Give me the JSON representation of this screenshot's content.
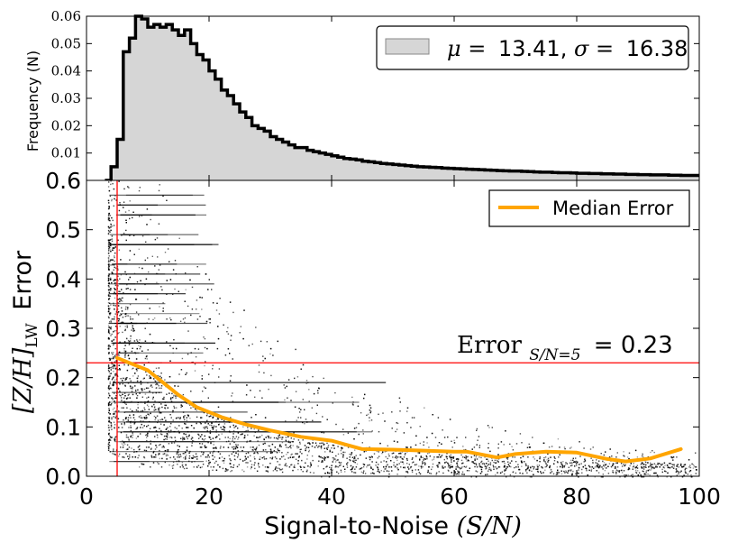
{
  "chart_data": [
    {
      "type": "histogram",
      "title": "",
      "ylabel": "Frequency (N)",
      "xlim": [
        0,
        100
      ],
      "ylim": [
        0,
        0.06
      ],
      "yticks": [
        "0.01",
        "0.02",
        "0.03",
        "0.04",
        "0.05",
        "0.06"
      ],
      "legend": {
        "mu_label": "μ =",
        "mu": "13.41",
        "sigma_label": "σ =",
        "sigma": "16.38",
        "placement": "top-right"
      },
      "bin_width": 1,
      "bins_start": 3,
      "values": [
        0.0,
        0.005,
        0.015,
        0.047,
        0.052,
        0.061,
        0.059,
        0.056,
        0.057,
        0.056,
        0.057,
        0.055,
        0.053,
        0.055,
        0.05,
        0.046,
        0.044,
        0.04,
        0.037,
        0.033,
        0.031,
        0.028,
        0.025,
        0.023,
        0.02,
        0.019,
        0.018,
        0.016,
        0.015,
        0.014,
        0.013,
        0.012,
        0.012,
        0.011,
        0.0105,
        0.01,
        0.0095,
        0.009,
        0.0085,
        0.008,
        0.0078,
        0.0075,
        0.007,
        0.0068,
        0.0065,
        0.0062,
        0.006,
        0.0058,
        0.0056,
        0.0054,
        0.0052,
        0.005,
        0.0049,
        0.0048,
        0.0047,
        0.0045,
        0.0044,
        0.0043,
        0.0042,
        0.0041,
        0.004,
        0.0039,
        0.0038,
        0.0037,
        0.0036,
        0.0035,
        0.0034,
        0.0034,
        0.0033,
        0.0032,
        0.0031,
        0.003,
        0.003,
        0.0029,
        0.0028,
        0.0028,
        0.0027,
        0.0026,
        0.0026,
        0.0025,
        0.0025,
        0.0024,
        0.0024,
        0.0023,
        0.0023,
        0.0022,
        0.0022,
        0.0021,
        0.0021,
        0.002,
        0.002,
        0.002,
        0.0019,
        0.0019,
        0.0018,
        0.0018,
        0.0018
      ],
      "fill_color": "#d6d6d6",
      "line_color": "#000000"
    },
    {
      "type": "scatter",
      "xlabel": "Signal-to-Noise",
      "xlabel_math": "(S/N)",
      "ylabel_math": "[Z/H]",
      "ylabel_sub": "LW",
      "ylabel_suffix": "Error",
      "xlim": [
        0,
        100
      ],
      "ylim": [
        0,
        0.6
      ],
      "xticks": [
        "0",
        "20",
        "40",
        "60",
        "80",
        "100"
      ],
      "yticks": [
        "0.0",
        "0.1",
        "0.2",
        "0.3",
        "0.4",
        "0.5",
        "0.6"
      ],
      "threshold_x": 5,
      "threshold_y": 0.23,
      "annotation": {
        "text_main": "Error",
        "text_sub": "S/N=5",
        "text_value": "= 0.23"
      },
      "legend": {
        "label": "Median Error",
        "placement": "top-right"
      },
      "median_series": {
        "name": "Median Error",
        "color": "#ffa500",
        "x": [
          5,
          7,
          10,
          12,
          15,
          18,
          22,
          26,
          30,
          35,
          40,
          45,
          50,
          55,
          60,
          62,
          67,
          70,
          75,
          80,
          85,
          88,
          92,
          97
        ],
        "y": [
          0.24,
          0.23,
          0.215,
          0.195,
          0.165,
          0.14,
          0.12,
          0.105,
          0.093,
          0.08,
          0.072,
          0.055,
          0.054,
          0.052,
          0.05,
          0.05,
          0.038,
          0.045,
          0.05,
          0.048,
          0.035,
          0.03,
          0.036,
          0.055
        ]
      },
      "scatter_color": "#000000",
      "threshold_color": "#ff0000"
    }
  ]
}
